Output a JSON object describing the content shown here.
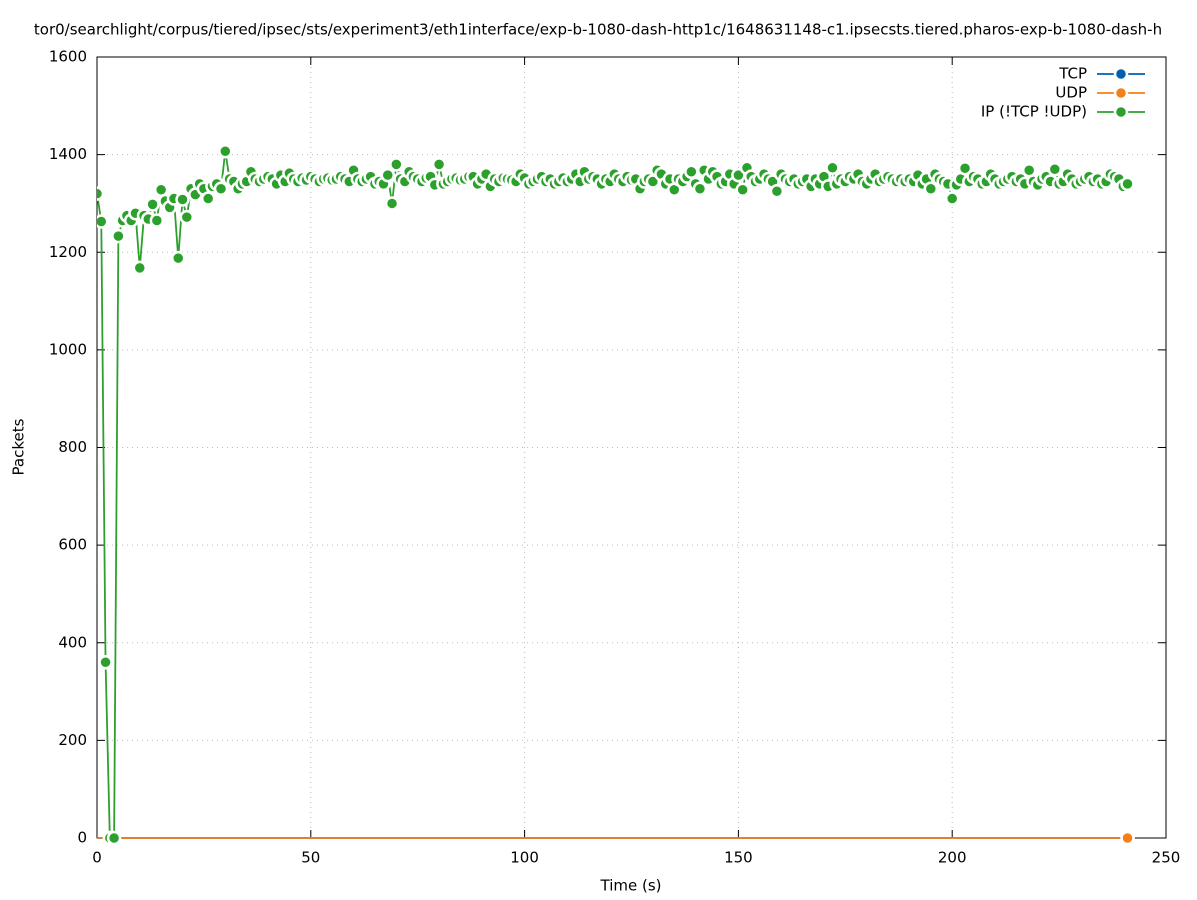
{
  "chart_data": {
    "type": "line",
    "title": "tor0/searchlight/corpus/tiered/ipsec/sts/experiment3/eth1interface/exp-b-1080-dash-http1c/1648631148-c1.ipsecsts.tiered.pharos-exp-b-1080-dash-h",
    "xlabel": "Time (s)",
    "ylabel": "Packets",
    "xlim": [
      0,
      250
    ],
    "xticks": [
      0,
      50,
      100,
      150,
      200,
      250
    ],
    "ylim": [
      0,
      1600
    ],
    "yticks": [
      0,
      200,
      400,
      600,
      800,
      1000,
      1200,
      1400,
      1600
    ],
    "grid": true,
    "legend": "upper right",
    "x": [
      0,
      1,
      2,
      3,
      4,
      5,
      6,
      7,
      8,
      9,
      10,
      11,
      12,
      13,
      14,
      15,
      16,
      17,
      18,
      19,
      20,
      21,
      22,
      23,
      24,
      25,
      26,
      27,
      28,
      29,
      30,
      31,
      32,
      33,
      34,
      35,
      36,
      37,
      38,
      39,
      40,
      41,
      42,
      43,
      44,
      45,
      46,
      47,
      48,
      49,
      50,
      51,
      52,
      53,
      54,
      55,
      56,
      57,
      58,
      59,
      60,
      61,
      62,
      63,
      64,
      65,
      66,
      67,
      68,
      69,
      70,
      71,
      72,
      73,
      74,
      75,
      76,
      77,
      78,
      79,
      80,
      81,
      82,
      83,
      84,
      85,
      86,
      87,
      88,
      89,
      90,
      91,
      92,
      93,
      94,
      95,
      96,
      97,
      98,
      99,
      100,
      101,
      102,
      103,
      104,
      105,
      106,
      107,
      108,
      109,
      110,
      111,
      112,
      113,
      114,
      115,
      116,
      117,
      118,
      119,
      120,
      121,
      122,
      123,
      124,
      125,
      126,
      127,
      128,
      129,
      130,
      131,
      132,
      133,
      134,
      135,
      136,
      137,
      138,
      139,
      140,
      141,
      142,
      143,
      144,
      145,
      146,
      147,
      148,
      149,
      150,
      151,
      152,
      153,
      154,
      155,
      156,
      157,
      158,
      159,
      160,
      161,
      162,
      163,
      164,
      165,
      166,
      167,
      168,
      169,
      170,
      171,
      172,
      173,
      174,
      175,
      176,
      177,
      178,
      179,
      180,
      181,
      182,
      183,
      184,
      185,
      186,
      187,
      188,
      189,
      190,
      191,
      192,
      193,
      194,
      195,
      196,
      197,
      198,
      199,
      200,
      201,
      202,
      203,
      204,
      205,
      206,
      207,
      208,
      209,
      210,
      211,
      212,
      213,
      214,
      215,
      216,
      217,
      218,
      219,
      220,
      221,
      222,
      223,
      224,
      225,
      226,
      227,
      228,
      229,
      230,
      231,
      232,
      233,
      234,
      235,
      236,
      237,
      238,
      239,
      240,
      241
    ],
    "series": [
      {
        "name": "TCP",
        "color": "#0060ad",
        "values": [
          0,
          0,
          0,
          0,
          0,
          0,
          0,
          0,
          0,
          0,
          0,
          0,
          0,
          0,
          0,
          0,
          0,
          0,
          0,
          0,
          0,
          0,
          0,
          0,
          0,
          0,
          0,
          0,
          0,
          0,
          0,
          0,
          0,
          0,
          0,
          0,
          0,
          0,
          0,
          0,
          0,
          0,
          0,
          0,
          0,
          0,
          0,
          0,
          0,
          0,
          0,
          0,
          0,
          0,
          0,
          0,
          0,
          0,
          0,
          0,
          0,
          0,
          0,
          0,
          0,
          0,
          0,
          0,
          0,
          0,
          0,
          0,
          0,
          0,
          0,
          0,
          0,
          0,
          0,
          0,
          0,
          0,
          0,
          0,
          0,
          0,
          0,
          0,
          0,
          0,
          0,
          0,
          0,
          0,
          0,
          0,
          0,
          0,
          0,
          0,
          0,
          0,
          0,
          0,
          0,
          0,
          0,
          0,
          0,
          0,
          0,
          0,
          0,
          0,
          0,
          0,
          0,
          0,
          0,
          0,
          0,
          0,
          0,
          0,
          0,
          0,
          0,
          0,
          0,
          0,
          0,
          0,
          0,
          0,
          0,
          0,
          0,
          0,
          0,
          0,
          0,
          0,
          0,
          0,
          0,
          0,
          0,
          0,
          0,
          0,
          0,
          0,
          0,
          0,
          0,
          0,
          0,
          0,
          0,
          0,
          0,
          0,
          0,
          0,
          0,
          0,
          0,
          0,
          0,
          0,
          0,
          0,
          0,
          0,
          0,
          0,
          0,
          0,
          0,
          0,
          0,
          0,
          0,
          0,
          0,
          0,
          0,
          0,
          0,
          0,
          0,
          0,
          0,
          0,
          0,
          0,
          0,
          0,
          0,
          0,
          0,
          0,
          0,
          0,
          0,
          0,
          0,
          0,
          0,
          0,
          0,
          0,
          0,
          0,
          0,
          0,
          0,
          0,
          0,
          0,
          0,
          0,
          0,
          0,
          0,
          0,
          0,
          0,
          0,
          0,
          0,
          0,
          0,
          0,
          0,
          0,
          0,
          0,
          0,
          0,
          0,
          0
        ]
      },
      {
        "name": "UDP",
        "color": "#f57f17",
        "values": [
          0,
          0,
          0,
          0,
          0,
          0,
          0,
          0,
          0,
          0,
          0,
          0,
          0,
          0,
          0,
          0,
          0,
          0,
          0,
          0,
          0,
          0,
          0,
          0,
          0,
          0,
          0,
          0,
          0,
          0,
          0,
          0,
          0,
          0,
          0,
          0,
          0,
          0,
          0,
          0,
          0,
          0,
          0,
          0,
          0,
          0,
          0,
          0,
          0,
          0,
          0,
          0,
          0,
          0,
          0,
          0,
          0,
          0,
          0,
          0,
          0,
          0,
          0,
          0,
          0,
          0,
          0,
          0,
          0,
          0,
          0,
          0,
          0,
          0,
          0,
          0,
          0,
          0,
          0,
          0,
          0,
          0,
          0,
          0,
          0,
          0,
          0,
          0,
          0,
          0,
          0,
          0,
          0,
          0,
          0,
          0,
          0,
          0,
          0,
          0,
          0,
          0,
          0,
          0,
          0,
          0,
          0,
          0,
          0,
          0,
          0,
          0,
          0,
          0,
          0,
          0,
          0,
          0,
          0,
          0,
          0,
          0,
          0,
          0,
          0,
          0,
          0,
          0,
          0,
          0,
          0,
          0,
          0,
          0,
          0,
          0,
          0,
          0,
          0,
          0,
          0,
          0,
          0,
          0,
          0,
          0,
          0,
          0,
          0,
          0,
          0,
          0,
          0,
          0,
          0,
          0,
          0,
          0,
          0,
          0,
          0,
          0,
          0,
          0,
          0,
          0,
          0,
          0,
          0,
          0,
          0,
          0,
          0,
          0,
          0,
          0,
          0,
          0,
          0,
          0,
          0,
          0,
          0,
          0,
          0,
          0,
          0,
          0,
          0,
          0,
          0,
          0,
          0,
          0,
          0,
          0,
          0,
          0,
          0,
          0,
          0,
          0,
          0,
          0,
          0,
          0,
          0,
          0,
          0,
          0,
          0,
          0,
          0,
          0,
          0,
          0,
          0,
          0,
          0,
          0,
          0,
          0,
          0,
          0,
          0,
          0,
          0,
          0,
          0,
          0,
          0,
          0,
          0,
          0,
          0,
          0,
          0,
          0,
          0,
          0,
          0,
          0
        ]
      },
      {
        "name": "IP (!TCP  !UDP)",
        "color": "#2ca02c",
        "values": [
          1320,
          1263,
          360,
          0,
          0,
          1233,
          1265,
          1275,
          1265,
          1280,
          1168,
          1275,
          1268,
          1298,
          1265,
          1328,
          1305,
          1292,
          1310,
          1188,
          1308,
          1272,
          1330,
          1318,
          1340,
          1330,
          1310,
          1335,
          1340,
          1330,
          1407,
          1350,
          1345,
          1330,
          1340,
          1345,
          1365,
          1350,
          1345,
          1350,
          1355,
          1350,
          1340,
          1358,
          1345,
          1362,
          1350,
          1345,
          1352,
          1348,
          1355,
          1350,
          1345,
          1350,
          1352,
          1348,
          1350,
          1355,
          1350,
          1345,
          1368,
          1350,
          1345,
          1350,
          1355,
          1340,
          1345,
          1340,
          1358,
          1300,
          1380,
          1350,
          1345,
          1365,
          1355,
          1350,
          1345,
          1352,
          1355,
          1338,
          1380,
          1340,
          1345,
          1350,
          1352,
          1348,
          1350,
          1355,
          1355,
          1340,
          1350,
          1360,
          1335,
          1350,
          1345,
          1352,
          1350,
          1348,
          1345,
          1360,
          1352,
          1340,
          1345,
          1350,
          1355,
          1345,
          1350,
          1340,
          1345,
          1352,
          1345,
          1350,
          1360,
          1345,
          1365,
          1350,
          1355,
          1350,
          1340,
          1350,
          1345,
          1360,
          1350,
          1345,
          1355,
          1348,
          1350,
          1330,
          1345,
          1350,
          1345,
          1368,
          1360,
          1340,
          1350,
          1328,
          1350,
          1345,
          1355,
          1365,
          1340,
          1330,
          1368,
          1350,
          1365,
          1355,
          1340,
          1345,
          1360,
          1340,
          1358,
          1328,
          1373,
          1355,
          1345,
          1350,
          1360,
          1350,
          1345,
          1325,
          1360,
          1350,
          1345,
          1350,
          1340,
          1345,
          1350,
          1335,
          1350,
          1340,
          1355,
          1335,
          1373,
          1340,
          1350,
          1345,
          1355,
          1350,
          1360,
          1345,
          1340,
          1350,
          1360,
          1345,
          1350,
          1355,
          1350,
          1345,
          1350,
          1345,
          1350,
          1345,
          1358,
          1340,
          1350,
          1330,
          1360,
          1350,
          1345,
          1340,
          1310,
          1338,
          1350,
          1372,
          1345,
          1355,
          1350,
          1340,
          1345,
          1360,
          1350,
          1340,
          1345,
          1350,
          1355,
          1345,
          1350,
          1340,
          1368,
          1345,
          1338,
          1350,
          1355,
          1345,
          1370,
          1340,
          1345,
          1360,
          1350,
          1340,
          1345,
          1350,
          1355,
          1345,
          1350,
          1340,
          1345,
          1360,
          1355,
          1350,
          1335,
          1340
        ]
      }
    ]
  }
}
